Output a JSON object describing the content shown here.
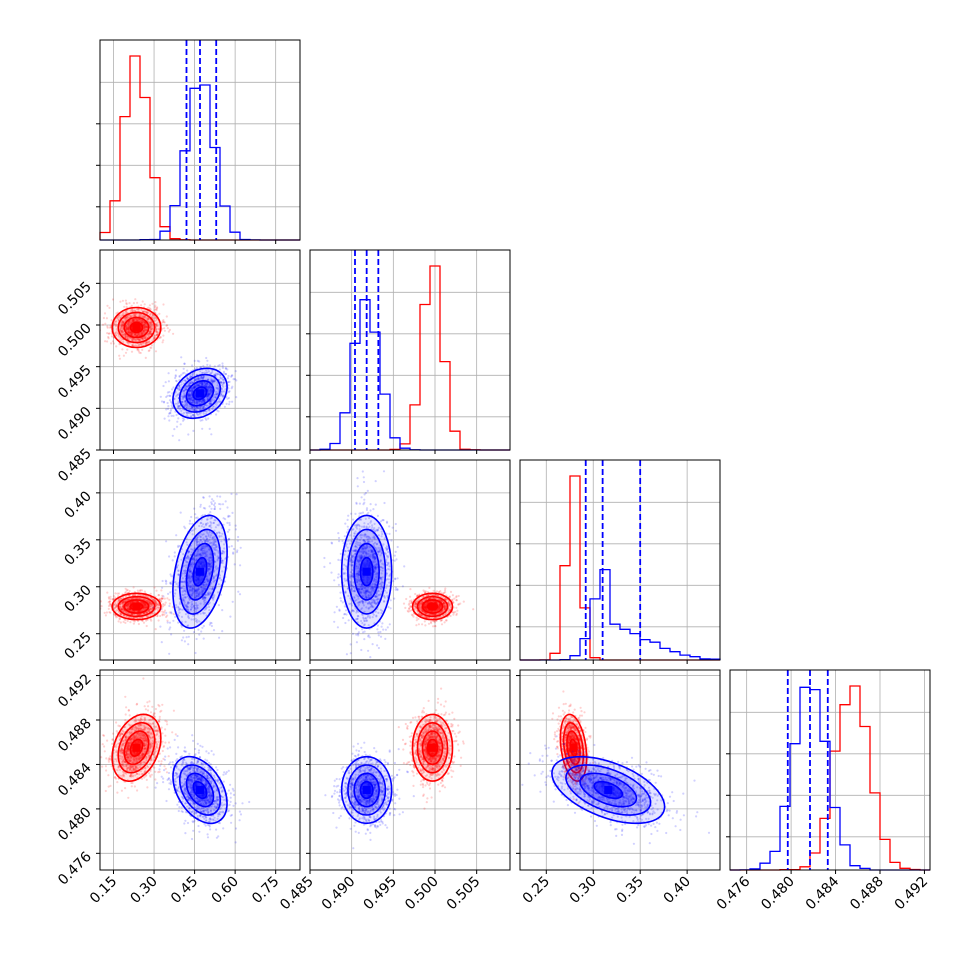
{
  "figure": {
    "type": "corner-plot"
  },
  "colors": {
    "series_a": "#ff0000",
    "series_b": "#0000ff",
    "grid": "#b0b0b0",
    "frame": "#000000"
  },
  "chart_data": {
    "type": "corner",
    "grid": true,
    "parameters": [
      {
        "ticks": [
          0.15,
          0.3,
          0.45,
          0.6,
          0.75
        ],
        "tick_labels": [
          "0.15",
          "0.30",
          "0.45",
          "0.60",
          "0.75"
        ],
        "range": [
          0.1,
          0.84
        ]
      },
      {
        "ticks": [
          0.485,
          0.49,
          0.495,
          0.5,
          0.505
        ],
        "tick_labels": [
          "0.485",
          "0.490",
          "0.495",
          "0.500",
          "0.505"
        ],
        "range": [
          0.485,
          0.509
        ]
      },
      {
        "ticks": [
          0.25,
          0.3,
          0.35,
          0.4
        ],
        "tick_labels": [
          "0.25",
          "0.30",
          "0.35",
          "0.40"
        ],
        "range": [
          0.222,
          0.435
        ]
      },
      {
        "ticks": [
          0.476,
          0.48,
          0.484,
          0.488,
          0.492
        ],
        "tick_labels": [
          "0.476",
          "0.480",
          "0.484",
          "0.488",
          "0.492"
        ],
        "range": [
          0.4745,
          0.4925
        ]
      }
    ],
    "series": [
      {
        "color": "#ff0000",
        "mean": [
          0.235,
          0.4997,
          0.279,
          0.4855
        ],
        "sd": [
          0.045,
          0.0012,
          0.007,
          0.0015
        ],
        "corr": [
          [
            0,
            3,
            0.3
          ],
          [
            2,
            3,
            -0.3
          ]
        ],
        "quantiles": null
      },
      {
        "color": "#0000ff",
        "mean": [
          0.47,
          0.4918,
          0.316,
          0.4817
        ],
        "sd": [
          0.05,
          0.0015,
          0.03,
          0.0015
        ],
        "corr": [
          [
            0,
            1,
            0.25
          ],
          [
            0,
            2,
            0.35
          ],
          [
            0,
            3,
            -0.4
          ],
          [
            2,
            3,
            -0.5
          ]
        ],
        "quantiles": [
          [
            0.42,
            0.47,
            0.53
          ],
          [
            0.4904,
            0.4918,
            0.4932
          ],
          [
            0.292,
            0.31,
            0.35
          ],
          [
            0.4797,
            0.4817,
            0.4833
          ]
        ]
      }
    ]
  }
}
